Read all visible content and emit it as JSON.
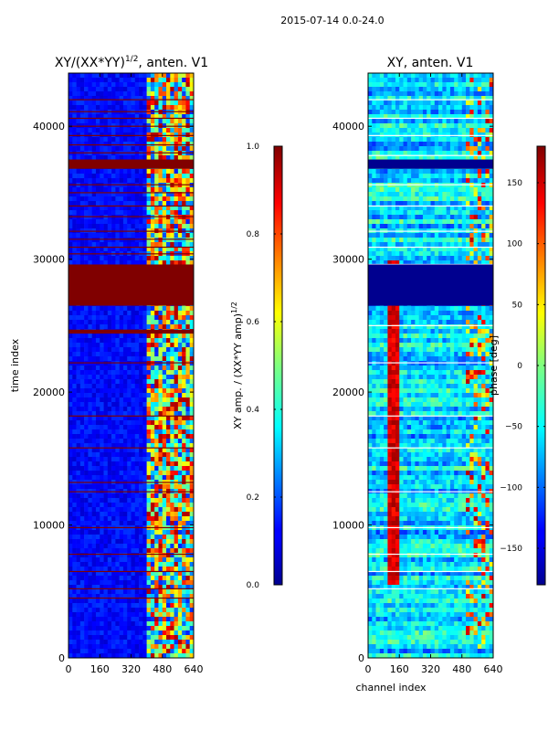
{
  "suptitle": "2015-07-14 0.0-24.0",
  "colors": {
    "band_red": "#800000",
    "band_navy": "#00008f",
    "white_line": "#ffffff",
    "base_low": "#0a14c8",
    "base_mid": "#1e50e6"
  },
  "chart_data": [
    {
      "type": "heatmap",
      "name": "normalized-xy-amplitude",
      "title": "XY/(XX*YY)",
      "title_exponent": "1/2",
      "title_suffix": ", anten. V1",
      "xlabel": "",
      "ylabel": "time index",
      "xlim": [
        0,
        640
      ],
      "ylim": [
        0,
        44000
      ],
      "x_ticks": [
        0,
        160,
        320,
        480,
        640
      ],
      "y_ticks": [
        0,
        10000,
        20000,
        30000,
        40000
      ],
      "colormap": "jet",
      "colorbar": {
        "label": "XY amp. / (XX*YY amp)",
        "label_exponent": "1/2",
        "range": [
          0.0,
          1.0
        ],
        "ticks": [
          "0.0",
          "0.2",
          "0.4",
          "0.6",
          "0.8",
          "1.0"
        ]
      },
      "saturated_bands": [
        {
          "t0": 26500,
          "t1": 29600,
          "value": 1.0
        },
        {
          "t0": 36800,
          "t1": 37500,
          "value": 1.0
        },
        {
          "t0": 24400,
          "t1": 24700,
          "value": 1.0
        }
      ],
      "flagged_rows": [
        4500,
        5200,
        6500,
        7800,
        9800,
        12500,
        13200,
        15800,
        18200,
        22200,
        30400,
        30900,
        31500,
        32100,
        33200,
        34000,
        35000,
        35600,
        38000,
        38600,
        39300,
        40000,
        40600,
        41100,
        42000
      ],
      "high_channel_range": [
        400,
        640
      ]
    },
    {
      "type": "heatmap",
      "name": "xy-phase",
      "title": "XY, anten. V1",
      "xlabel": "channel index",
      "ylabel": "",
      "xlim": [
        0,
        640
      ],
      "ylim": [
        0,
        44000
      ],
      "x_ticks": [
        0,
        160,
        320,
        480,
        640
      ],
      "y_ticks": [
        0,
        10000,
        20000,
        30000,
        40000
      ],
      "colormap": "jet",
      "colorbar": {
        "label": "phase [deg]",
        "range": [
          -180,
          180
        ],
        "ticks": [
          "−150",
          "−100",
          "−50",
          "0",
          "50",
          "100",
          "150"
        ],
        "tick_values": [
          -150,
          -100,
          -50,
          0,
          50,
          100,
          150
        ]
      },
      "saturated_bands": [
        {
          "t0": 26500,
          "t1": 29600,
          "value": -180
        },
        {
          "t0": 36800,
          "t1": 37500,
          "value": -180
        }
      ],
      "red_stripe_channels": [
        100,
        160
      ],
      "flagged_rows": [
        5200,
        6500,
        7800,
        9800,
        12500,
        15800,
        18200,
        22200,
        25000,
        29600,
        30900,
        32100,
        34000,
        35600,
        37800,
        39300,
        40600,
        42000
      ]
    }
  ]
}
